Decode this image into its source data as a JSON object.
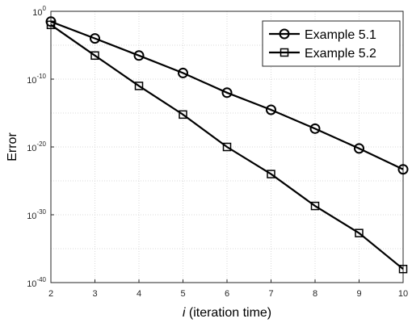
{
  "chart_data": {
    "type": "line",
    "xlabel_italic": "i",
    "xlabel_rest": " (iteration time)",
    "ylabel": "Error",
    "x": [
      2,
      3,
      4,
      5,
      6,
      7,
      8,
      9,
      10
    ],
    "xlim": [
      2,
      10
    ],
    "ylim_exponent": [
      -40,
      0
    ],
    "yscale": "log",
    "grid": true,
    "legend_position": "top-right",
    "x_ticks": [
      "2",
      "3",
      "4",
      "5",
      "6",
      "7",
      "8",
      "9",
      "10"
    ],
    "y_ticks": [
      {
        "base": "10",
        "exp": "0",
        "value_exp": 0
      },
      {
        "base": "10",
        "exp": "-10",
        "value_exp": -10
      },
      {
        "base": "10",
        "exp": "-20",
        "value_exp": -20
      },
      {
        "base": "10",
        "exp": "-30",
        "value_exp": -30
      },
      {
        "base": "10",
        "exp": "-40",
        "value_exp": -40
      }
    ],
    "series": [
      {
        "name": "Example 5.1",
        "marker": "circle",
        "values": [
          0.03,
          0.0001,
          3e-07,
          8e-10,
          1e-12,
          3e-15,
          5e-18,
          6e-21,
          5e-24
        ]
      },
      {
        "name": "Example 5.2",
        "marker": "square",
        "values": [
          0.01,
          3e-07,
          1e-11,
          6e-16,
          1e-20,
          1e-24,
          2e-29,
          2e-33,
          1e-38
        ]
      }
    ]
  }
}
